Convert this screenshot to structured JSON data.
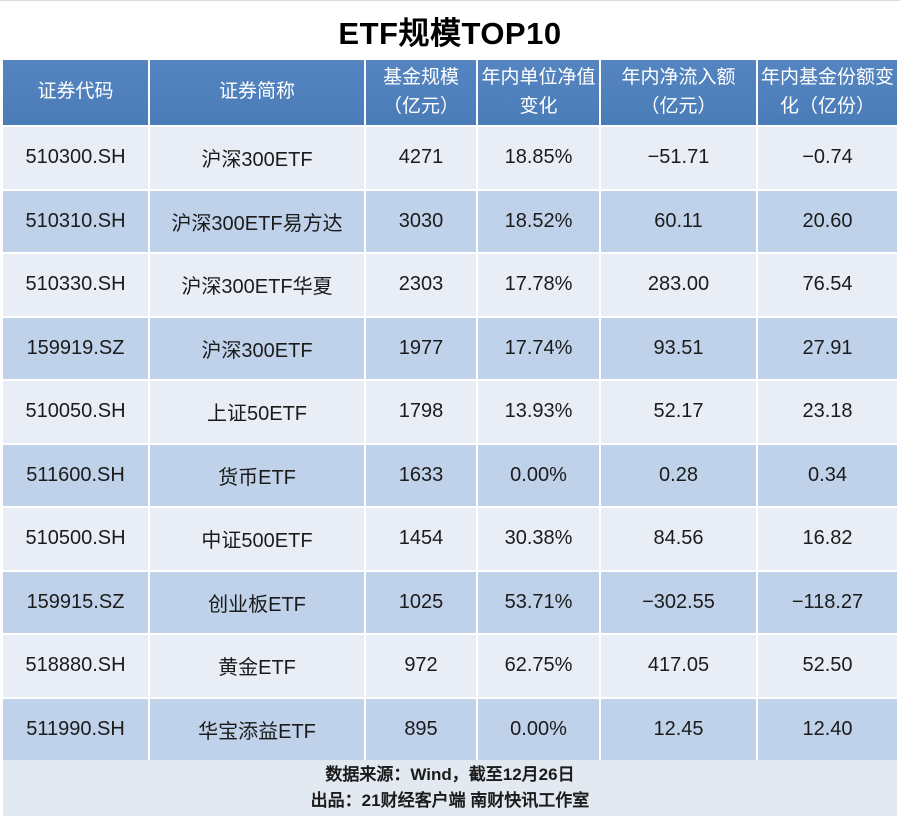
{
  "title": "ETF规模TOP10",
  "colors": {
    "header_bg": "#4d80bc",
    "row_odd_bg": "#e9eef6",
    "row_even_bg": "#bfd2e9",
    "footer_bg": "#e2e9f1",
    "header_text": "#ffffff",
    "body_text": "#1b1b1b"
  },
  "table": {
    "headers": [
      "证券代码",
      "证券简称",
      "基金规模\n（亿元）",
      "年内单位净值\n变化",
      "年内净流入额\n（亿元）",
      "年内基金份额变\n化（亿份）"
    ],
    "rows": [
      [
        "510300.SH",
        "沪深300ETF",
        "4271",
        "18.85%",
        "−51.71",
        "−0.74"
      ],
      [
        "510310.SH",
        "沪深300ETF易方达",
        "3030",
        "18.52%",
        "60.11",
        "20.60"
      ],
      [
        "510330.SH",
        "沪深300ETF华夏",
        "2303",
        "17.78%",
        "283.00",
        "76.54"
      ],
      [
        "159919.SZ",
        "沪深300ETF",
        "1977",
        "17.74%",
        "93.51",
        "27.91"
      ],
      [
        "510050.SH",
        "上证50ETF",
        "1798",
        "13.93%",
        "52.17",
        "23.18"
      ],
      [
        "511600.SH",
        "货币ETF",
        "1633",
        "0.00%",
        "0.28",
        "0.34"
      ],
      [
        "510500.SH",
        "中证500ETF",
        "1454",
        "30.38%",
        "84.56",
        "16.82"
      ],
      [
        "159915.SZ",
        "创业板ETF",
        "1025",
        "53.71%",
        "−302.55",
        "−118.27"
      ],
      [
        "518880.SH",
        "黄金ETF",
        "972",
        "62.75%",
        "417.05",
        "52.50"
      ],
      [
        "511990.SH",
        "华宝添益ETF",
        "895",
        "0.00%",
        "12.45",
        "12.40"
      ]
    ]
  },
  "footer": {
    "line1": "数据来源：Wind，截至12月26日",
    "line2": "出品：21财经客户端 南财快讯工作室"
  },
  "chart_data": {
    "type": "table",
    "title": "ETF规模TOP10",
    "columns": [
      "证券代码",
      "证券简称",
      "基金规模（亿元）",
      "年内单位净值变化",
      "年内净流入额（亿元）",
      "年内基金份额变化（亿份）"
    ],
    "rows": [
      [
        "510300.SH",
        "沪深300ETF",
        4271,
        "18.85%",
        -51.71,
        -0.74
      ],
      [
        "510310.SH",
        "沪深300ETF易方达",
        3030,
        "18.52%",
        60.11,
        20.6
      ],
      [
        "510330.SH",
        "沪深300ETF华夏",
        2303,
        "17.78%",
        283.0,
        76.54
      ],
      [
        "159919.SZ",
        "沪深300ETF",
        1977,
        "17.74%",
        93.51,
        27.91
      ],
      [
        "510050.SH",
        "上证50ETF",
        1798,
        "13.93%",
        52.17,
        23.18
      ],
      [
        "511600.SH",
        "货币ETF",
        1633,
        "0.00%",
        0.28,
        0.34
      ],
      [
        "510500.SH",
        "中证500ETF",
        1454,
        "30.38%",
        84.56,
        16.82
      ],
      [
        "159915.SZ",
        "创业板ETF",
        1025,
        "53.71%",
        -302.55,
        -118.27
      ],
      [
        "518880.SH",
        "黄金ETF",
        972,
        "62.75%",
        417.05,
        52.5
      ],
      [
        "511990.SH",
        "华宝添益ETF",
        895,
        "0.00%",
        12.45,
        12.4
      ]
    ],
    "source_note": "数据来源：Wind，截至12月26日",
    "producer_note": "出品：21财经客户端 南财快讯工作室"
  }
}
